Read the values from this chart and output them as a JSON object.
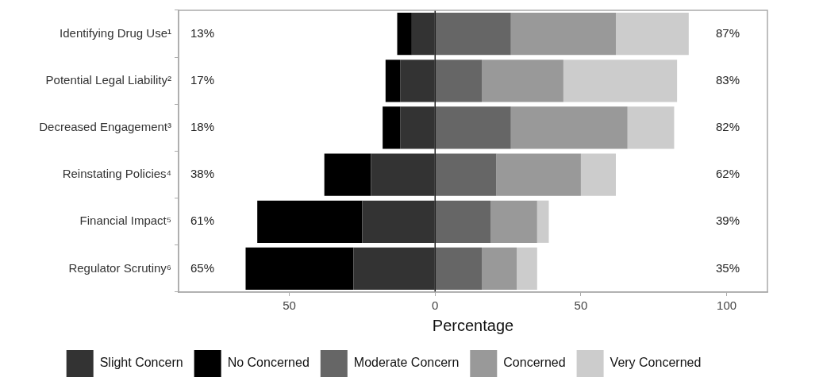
{
  "chart_data": {
    "type": "bar",
    "orientation": "horizontal",
    "stacked": true,
    "xlabel": "Percentage",
    "categories": [
      "Identifying Drug Use¹",
      "Potential Legal Liability²",
      "Decreased Engagement³",
      "Reinstating Policies⁴",
      "Financial Impact⁵",
      "Regulator Scrutiny⁶"
    ],
    "series": [
      {
        "name": "Slight Concern",
        "color": "#333333",
        "values": [
          -8,
          -12,
          -12,
          -22,
          -25,
          -28
        ]
      },
      {
        "name": "No Concerned",
        "color": "#000000",
        "values": [
          -5,
          -5,
          -6,
          -16,
          -36,
          -37
        ]
      },
      {
        "name": "Moderate Concern",
        "color": "#666666",
        "values": [
          26,
          16,
          26,
          21,
          19,
          16
        ]
      },
      {
        "name": "Concerned",
        "color": "#999999",
        "values": [
          36,
          28,
          40,
          29,
          16,
          12
        ]
      },
      {
        "name": "Very Concerned",
        "color": "#cccccc",
        "values": [
          25,
          39,
          16,
          12,
          4,
          7
        ]
      }
    ],
    "xlim": [
      -88,
      114
    ],
    "xticks": [
      {
        "value": -50,
        "label": "50"
      },
      0,
      50,
      100
    ],
    "ref_lines": [
      {
        "axis": "x",
        "value": 0,
        "color": "#222222"
      }
    ],
    "legend": "bottom",
    "grid": false,
    "annotations": [
      "13%",
      "17%",
      "18%",
      "38%",
      "61%",
      "65%",
      "87%",
      "83%",
      "82%",
      "62%",
      "39%",
      "35%"
    ]
  }
}
